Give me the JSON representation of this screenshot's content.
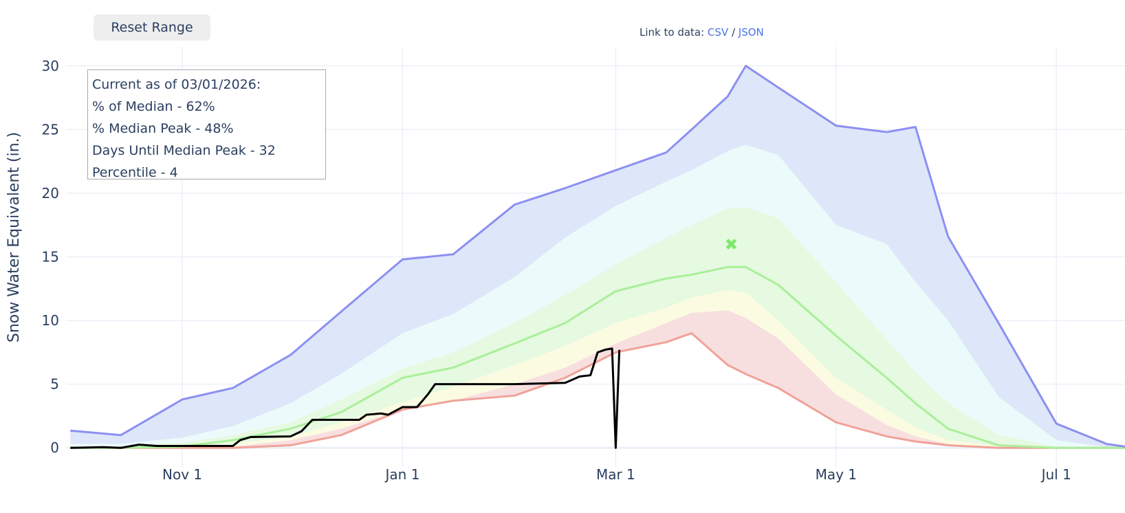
{
  "controls": {
    "reset_label": "Reset Range"
  },
  "data_links": {
    "prefix": "Link to data: ",
    "csv": "CSV",
    "separator": " / ",
    "json": "JSON"
  },
  "annotation": {
    "lines": [
      "Current as of 03/01/2026:",
      "% of Median - 62%",
      "% Median Peak - 48%",
      "Days Until Median Peak - 32",
      "Percentile - 4"
    ]
  },
  "chart_data": {
    "type": "area",
    "ylabel": "Snow Water Equivalent (in.)",
    "xlabel": "",
    "xlim": [
      "2025-09-30",
      "2026-07-20"
    ],
    "ylim": [
      -1.5,
      31.5
    ],
    "yticks": [
      0,
      5,
      10,
      15,
      20,
      25,
      30
    ],
    "xticks": [
      {
        "date": "2025-11-01",
        "label": "Nov 1"
      },
      {
        "date": "2026-01-01",
        "label": "Jan 1"
      },
      {
        "date": "2026-03-01",
        "label": "Mar 1"
      },
      {
        "date": "2026-05-01",
        "label": "May 1"
      },
      {
        "date": "2026-07-01",
        "label": "Jul 1"
      }
    ],
    "grid": true,
    "dates": [
      "2025-10-01",
      "2025-10-15",
      "2025-11-01",
      "2025-11-15",
      "2025-12-01",
      "2025-12-15",
      "2026-01-01",
      "2026-01-15",
      "2026-02-01",
      "2026-02-15",
      "2026-03-01",
      "2026-03-15",
      "2026-03-22",
      "2026-04-01",
      "2026-04-06",
      "2026-04-15",
      "2026-05-01",
      "2026-05-15",
      "2026-05-23",
      "2026-06-01",
      "2026-06-15",
      "2026-07-01",
      "2026-07-15",
      "2026-07-20"
    ],
    "series": [
      {
        "key": "max",
        "color": "#8c8ff2",
        "values": [
          1.35,
          1.0,
          3.8,
          4.7,
          7.3,
          10.7,
          14.8,
          15.2,
          19.1,
          20.4,
          21.8,
          23.2,
          25.0,
          27.6,
          30.0,
          28.3,
          25.3,
          24.8,
          25.2,
          16.6,
          9.8,
          1.9,
          0.3,
          0.1
        ]
      },
      {
        "key": "p90",
        "color": "#dde7f9",
        "values": [
          0.3,
          0.3,
          0.8,
          1.7,
          3.5,
          5.8,
          9.0,
          10.5,
          13.4,
          16.5,
          19.0,
          20.9,
          21.8,
          23.3,
          23.8,
          23.0,
          17.5,
          16.0,
          13.0,
          10.0,
          4.0,
          0.6,
          0.05,
          0
        ]
      },
      {
        "key": "p70",
        "color": "#ebfbfb",
        "values": [
          0,
          0.1,
          0.4,
          1.0,
          2.0,
          3.8,
          6.2,
          7.5,
          9.8,
          12.0,
          14.4,
          16.5,
          17.5,
          18.8,
          18.9,
          18.0,
          13.0,
          8.5,
          6.0,
          3.5,
          1.0,
          0.1,
          0,
          0
        ]
      },
      {
        "key": "median",
        "color": "#a9ef99",
        "values": [
          0,
          0,
          0.1,
          0.6,
          1.5,
          2.8,
          5.5,
          6.3,
          8.2,
          9.8,
          12.3,
          13.3,
          13.6,
          14.2,
          14.2,
          12.8,
          8.8,
          5.5,
          3.5,
          1.5,
          0.2,
          0,
          0,
          0
        ]
      },
      {
        "key": "p30",
        "color": "#e6f9e1",
        "values": [
          0,
          0,
          0,
          0.3,
          0.9,
          2.0,
          3.6,
          4.8,
          6.5,
          8.0,
          9.8,
          11.0,
          11.8,
          12.4,
          12.2,
          10.0,
          5.5,
          3.0,
          1.6,
          0.6,
          0.1,
          0,
          0,
          0
        ]
      },
      {
        "key": "p10",
        "color": "#fbfbe2",
        "values": [
          0,
          0,
          0,
          0.1,
          0.6,
          1.5,
          3.0,
          3.7,
          5.0,
          6.3,
          8.2,
          9.8,
          10.6,
          10.8,
          10.2,
          8.6,
          4.2,
          1.8,
          0.9,
          0.3,
          0,
          0,
          0,
          0
        ]
      },
      {
        "key": "min",
        "color": "#f0a298",
        "values": [
          0,
          0,
          0,
          0,
          0.2,
          1.0,
          3.0,
          3.7,
          4.1,
          5.5,
          7.5,
          8.3,
          9.0,
          6.5,
          5.8,
          4.7,
          2.0,
          0.9,
          0.5,
          0.2,
          0,
          0,
          0,
          0
        ]
      }
    ],
    "band_colors": {
      "max_p90": "#dde7f9",
      "p90_p70": "#ebfbfb",
      "p70_p30": "#e6f9e1",
      "p30_p10": "#fbfbe2",
      "p10_min": "#f8dfdf"
    },
    "current": {
      "color": "#000000",
      "points": [
        [
          "2025-10-01",
          0
        ],
        [
          "2025-10-10",
          0.05
        ],
        [
          "2025-10-15",
          0
        ],
        [
          "2025-10-20",
          0.25
        ],
        [
          "2025-10-25",
          0.15
        ],
        [
          "2025-11-01",
          0.15
        ],
        [
          "2025-11-15",
          0.15
        ],
        [
          "2025-11-17",
          0.6
        ],
        [
          "2025-11-20",
          0.85
        ],
        [
          "2025-12-01",
          0.9
        ],
        [
          "2025-12-04",
          1.3
        ],
        [
          "2025-12-07",
          2.2
        ],
        [
          "2025-12-20",
          2.2
        ],
        [
          "2025-12-22",
          2.6
        ],
        [
          "2025-12-26",
          2.7
        ],
        [
          "2025-12-28",
          2.6
        ],
        [
          "2026-01-01",
          3.2
        ],
        [
          "2026-01-05",
          3.2
        ],
        [
          "2026-01-08",
          4.2
        ],
        [
          "2026-01-10",
          5.0
        ],
        [
          "2026-02-01",
          5.0
        ],
        [
          "2026-02-15",
          5.1
        ],
        [
          "2026-02-19",
          5.6
        ],
        [
          "2026-02-22",
          5.7
        ],
        [
          "2026-02-24",
          7.5
        ],
        [
          "2026-02-26",
          7.7
        ],
        [
          "2026-02-28",
          7.8
        ],
        [
          "2026-03-01",
          0
        ],
        [
          "2026-03-02",
          7.7
        ]
      ]
    },
    "median_peak_marker": {
      "date": "2026-04-02",
      "value": 16.0,
      "symbol": "x",
      "color": "#7de86a"
    }
  }
}
